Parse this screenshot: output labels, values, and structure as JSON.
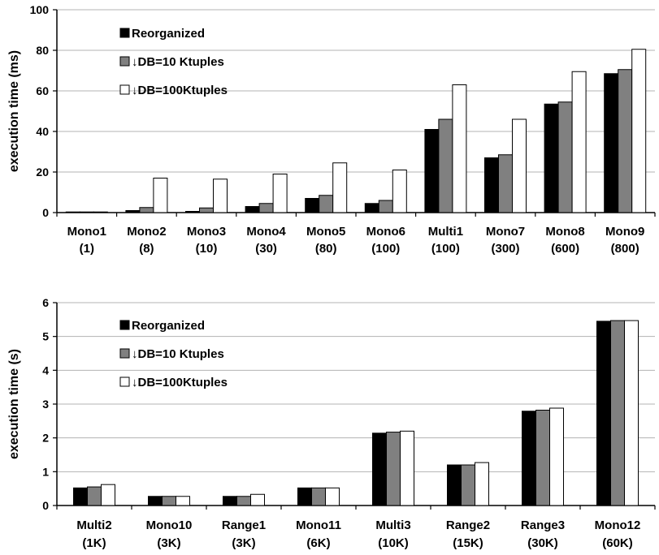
{
  "chart_data": [
    {
      "type": "bar",
      "ylabel": "execution time (ms)",
      "ylim": [
        0,
        100
      ],
      "yticks": [
        0,
        20,
        40,
        60,
        80,
        100
      ],
      "grid": true,
      "legend_position": "top-left",
      "categories": [
        [
          "Mono1",
          "(1)"
        ],
        [
          "Mono2",
          "(8)"
        ],
        [
          "Mono3",
          "(10)"
        ],
        [
          "Mono4",
          "(30)"
        ],
        [
          "Mono5",
          "(80)"
        ],
        [
          "Mono6",
          "(100)"
        ],
        [
          "Multi1",
          "(100)"
        ],
        [
          "Mono7",
          "(300)"
        ],
        [
          "Mono8",
          "(600)"
        ],
        [
          "Mono9",
          "(800)"
        ]
      ],
      "series": [
        {
          "name": "Reorganized",
          "color": "#000000",
          "values": [
            0.3,
            1.0,
            0.6,
            3.0,
            7.0,
            4.5,
            41.0,
            27.0,
            53.5,
            68.5
          ]
        },
        {
          "name": "↓DB=10 Ktuples",
          "color": "#808080",
          "values": [
            0.3,
            2.5,
            2.3,
            4.5,
            8.5,
            6.0,
            46.0,
            28.5,
            54.5,
            70.5
          ]
        },
        {
          "name": "↓DB=100Ktuples",
          "color": "#ffffff",
          "values": [
            0.3,
            17.0,
            16.5,
            19.0,
            24.5,
            21.0,
            63.0,
            46.0,
            69.5,
            80.5
          ]
        }
      ]
    },
    {
      "type": "bar",
      "ylabel": "execution time (s)",
      "ylim": [
        0,
        6
      ],
      "yticks": [
        0,
        1,
        2,
        3,
        4,
        5,
        6
      ],
      "grid": true,
      "legend_position": "top-left",
      "categories": [
        [
          "Multi2",
          "(1K)"
        ],
        [
          "Mono10",
          "(3K)"
        ],
        [
          "Range1",
          "(3K)"
        ],
        [
          "Mono11",
          "(6K)"
        ],
        [
          "Multi3",
          "(10K)"
        ],
        [
          "Range2",
          "(15K)"
        ],
        [
          "Range3",
          "(30K)"
        ],
        [
          "Mono12",
          "(60K)"
        ]
      ],
      "series": [
        {
          "name": "Reorganized",
          "color": "#000000",
          "values": [
            0.52,
            0.27,
            0.27,
            0.52,
            2.14,
            1.2,
            2.79,
            5.45
          ]
        },
        {
          "name": "↓DB=10 Ktuples",
          "color": "#808080",
          "values": [
            0.55,
            0.27,
            0.27,
            0.52,
            2.17,
            1.2,
            2.82,
            5.47
          ]
        },
        {
          "name": "↓DB=100Ktuples",
          "color": "#ffffff",
          "values": [
            0.62,
            0.27,
            0.33,
            0.52,
            2.2,
            1.27,
            2.88,
            5.47
          ]
        }
      ]
    }
  ]
}
